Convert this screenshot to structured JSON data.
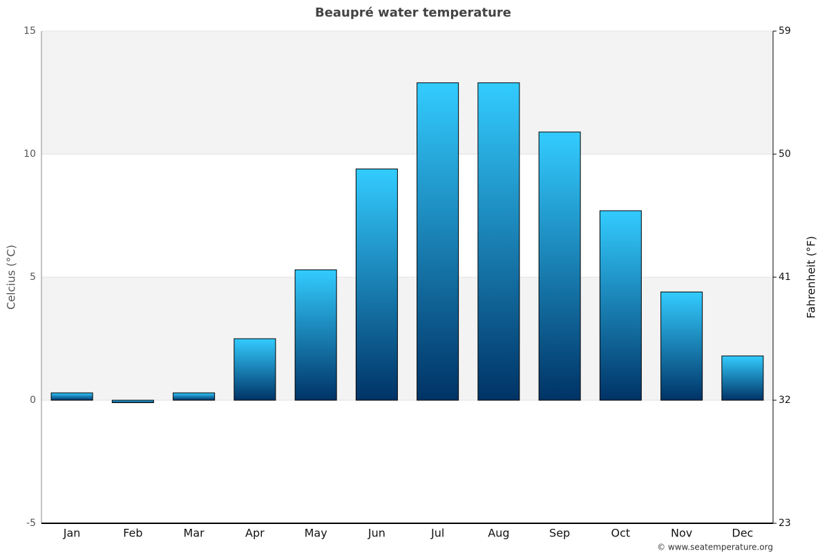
{
  "chart_data": {
    "type": "bar",
    "title": "Beaupré water temperature",
    "y_label": "Celcius (°C)",
    "y2_label": "Fahrenheit (°F)",
    "credit": "© www.seatemperature.org",
    "categories": [
      "Jan",
      "Feb",
      "Mar",
      "Apr",
      "May",
      "Jun",
      "Jul",
      "Aug",
      "Sep",
      "Oct",
      "Nov",
      "Dec"
    ],
    "values": [
      0.3,
      -0.1,
      0.3,
      2.5,
      5.3,
      9.4,
      12.9,
      12.9,
      10.9,
      7.7,
      4.4,
      1.8
    ],
    "color": [
      "#33ccff",
      "#003366"
    ],
    "ylim": [
      -5,
      15
    ],
    "yticks": [
      -5,
      0,
      5,
      10,
      15
    ],
    "y2lim": [
      23,
      59
    ],
    "y2ticks": [
      23,
      32,
      41,
      50,
      59
    ],
    "grid": true
  }
}
